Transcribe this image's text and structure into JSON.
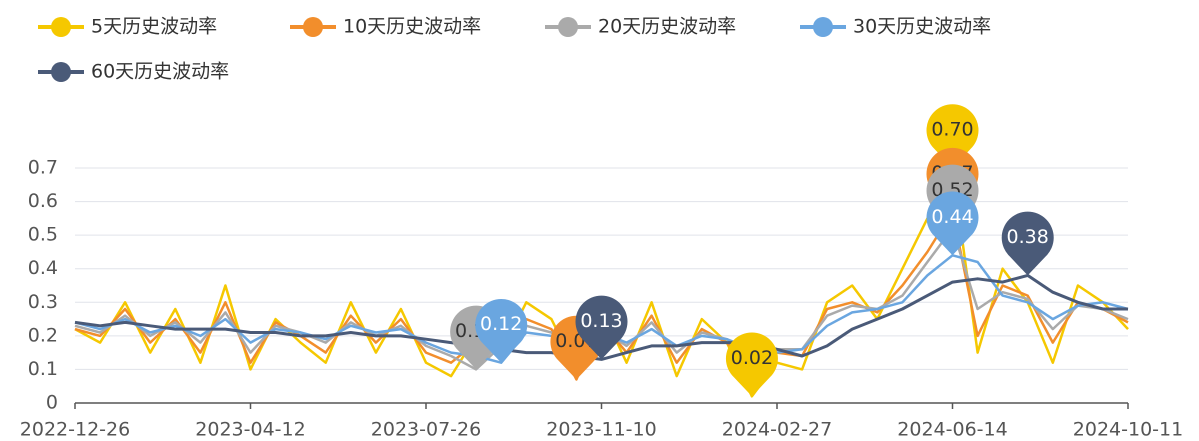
{
  "chart_data": {
    "type": "line",
    "x": [
      "2022-12-26",
      "2023-01-10",
      "2023-01-27",
      "2023-02-13",
      "2023-02-28",
      "2023-03-15",
      "2023-03-28",
      "2023-04-12",
      "2023-04-27",
      "2023-05-15",
      "2023-05-30",
      "2023-06-13",
      "2023-06-28",
      "2023-07-12",
      "2023-07-26",
      "2023-08-10",
      "2023-08-25",
      "2023-09-11",
      "2023-09-25",
      "2023-10-16",
      "2023-10-26",
      "2023-11-10",
      "2023-11-27",
      "2023-12-12",
      "2023-12-27",
      "2024-01-11",
      "2024-01-26",
      "2024-02-07",
      "2024-02-27",
      "2024-03-13",
      "2024-03-28",
      "2024-04-15",
      "2024-04-30",
      "2024-05-17",
      "2024-05-31",
      "2024-06-14",
      "2024-07-01",
      "2024-07-16",
      "2024-07-31",
      "2024-08-15",
      "2024-08-30",
      "2024-09-13",
      "2024-10-11"
    ],
    "xticks": [
      "2022-12-26",
      "2023-04-12",
      "2023-07-26",
      "2023-11-10",
      "2024-02-27",
      "2024-06-14",
      "2024-10-11"
    ],
    "ylim": [
      0,
      0.7
    ],
    "yticks": [
      0,
      0.1,
      0.2,
      0.3,
      0.4,
      0.5,
      0.6,
      0.7
    ],
    "grid": true,
    "series": [
      {
        "name": "5天历史波动率",
        "color": "#f5c800",
        "markpoint_labels": {
          "max": "0.70",
          "min": "0.02"
        },
        "values": [
          0.22,
          0.18,
          0.3,
          0.15,
          0.28,
          0.12,
          0.35,
          0.1,
          0.25,
          0.18,
          0.12,
          0.3,
          0.15,
          0.28,
          0.12,
          0.08,
          0.2,
          0.15,
          0.3,
          0.25,
          0.1,
          0.28,
          0.12,
          0.3,
          0.08,
          0.25,
          0.18,
          0.02,
          0.12,
          0.1,
          0.3,
          0.35,
          0.25,
          0.4,
          0.55,
          0.7,
          0.15,
          0.4,
          0.3,
          0.12,
          0.35,
          0.3,
          0.22
        ]
      },
      {
        "name": "10天历史波动率",
        "color": "#f28e2c",
        "markpoint_labels": {
          "max": "0.57",
          "min": "0.07"
        },
        "values": [
          0.22,
          0.2,
          0.28,
          0.18,
          0.25,
          0.15,
          0.3,
          0.12,
          0.24,
          0.2,
          0.15,
          0.26,
          0.18,
          0.25,
          0.15,
          0.12,
          0.18,
          0.16,
          0.25,
          0.22,
          0.07,
          0.24,
          0.15,
          0.26,
          0.12,
          0.22,
          0.18,
          0.1,
          0.15,
          0.14,
          0.28,
          0.3,
          0.27,
          0.35,
          0.45,
          0.57,
          0.2,
          0.35,
          0.32,
          0.18,
          0.3,
          0.28,
          0.24
        ]
      },
      {
        "name": "20天历史波动率",
        "color": "#aaaaaa",
        "markpoint_labels": {
          "max": "0.52",
          "min": "0.10"
        },
        "values": [
          0.23,
          0.21,
          0.26,
          0.2,
          0.24,
          0.18,
          0.27,
          0.15,
          0.23,
          0.21,
          0.18,
          0.24,
          0.2,
          0.23,
          0.17,
          0.14,
          0.1,
          0.17,
          0.23,
          0.21,
          0.14,
          0.22,
          0.17,
          0.24,
          0.15,
          0.21,
          0.19,
          0.14,
          0.16,
          0.16,
          0.26,
          0.29,
          0.28,
          0.32,
          0.42,
          0.52,
          0.28,
          0.33,
          0.31,
          0.22,
          0.29,
          0.28,
          0.25
        ]
      },
      {
        "name": "30天历史波动率",
        "color": "#6aa6e0",
        "markpoint_labels": {
          "max": "0.44",
          "min": "0.12"
        },
        "values": [
          0.24,
          0.22,
          0.25,
          0.21,
          0.23,
          0.2,
          0.25,
          0.18,
          0.22,
          0.21,
          0.19,
          0.23,
          0.21,
          0.22,
          0.18,
          0.15,
          0.14,
          0.12,
          0.21,
          0.2,
          0.15,
          0.21,
          0.18,
          0.22,
          0.17,
          0.2,
          0.19,
          0.16,
          0.15,
          0.16,
          0.23,
          0.27,
          0.28,
          0.3,
          0.38,
          0.44,
          0.42,
          0.32,
          0.3,
          0.25,
          0.29,
          0.3,
          0.28
        ]
      },
      {
        "name": "60天历史波动率",
        "color": "#4a5a78",
        "markpoint_labels": {
          "max": "0.38",
          "min": "0.13"
        },
        "values": [
          0.24,
          0.23,
          0.24,
          0.23,
          0.22,
          0.22,
          0.22,
          0.21,
          0.21,
          0.2,
          0.2,
          0.21,
          0.2,
          0.2,
          0.19,
          0.18,
          0.17,
          0.16,
          0.15,
          0.15,
          0.14,
          0.13,
          0.15,
          0.17,
          0.17,
          0.18,
          0.18,
          0.18,
          0.16,
          0.14,
          0.17,
          0.22,
          0.25,
          0.28,
          0.32,
          0.36,
          0.37,
          0.36,
          0.38,
          0.33,
          0.3,
          0.28,
          0.28
        ]
      }
    ]
  }
}
